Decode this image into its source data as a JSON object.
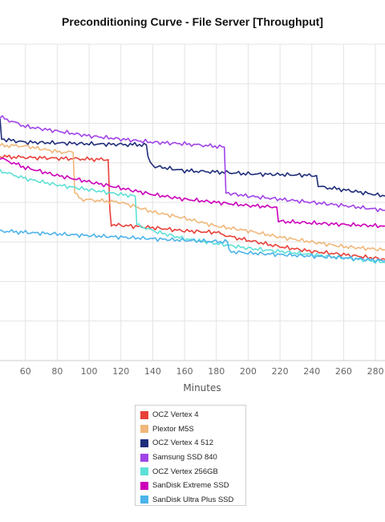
{
  "chart_data": {
    "type": "line",
    "title": "Preconditioning Curve - File Server [Throughput]",
    "xlabel": "Minutes",
    "ylabel": "",
    "x_ticks": [
      60,
      80,
      100,
      120,
      140,
      160,
      180,
      200,
      220,
      240,
      260,
      280
    ],
    "xlim": [
      44,
      286
    ],
    "ylim": [
      0,
      1
    ],
    "grid": true,
    "legend_position": "bottom",
    "series": [
      {
        "name": "OCZ Vertex 4",
        "color": "#e8413a",
        "points": [
          [
            44,
            0.645
          ],
          [
            60,
            0.642
          ],
          [
            90,
            0.638
          ],
          [
            112,
            0.635
          ],
          [
            113,
            0.48
          ],
          [
            114,
            0.43
          ],
          [
            140,
            0.42
          ],
          [
            160,
            0.41
          ],
          [
            180,
            0.405
          ],
          [
            190,
            0.39
          ],
          [
            220,
            0.36
          ],
          [
            240,
            0.345
          ],
          [
            260,
            0.335
          ],
          [
            286,
            0.32
          ]
        ]
      },
      {
        "name": "Plextor M5S",
        "color": "#f0b77a",
        "points": [
          [
            44,
            0.68
          ],
          [
            60,
            0.678
          ],
          [
            80,
            0.66
          ],
          [
            90,
            0.658
          ],
          [
            91,
            0.53
          ],
          [
            95,
            0.51
          ],
          [
            120,
            0.5
          ],
          [
            140,
            0.47
          ],
          [
            160,
            0.45
          ],
          [
            180,
            0.425
          ],
          [
            200,
            0.41
          ],
          [
            220,
            0.39
          ],
          [
            240,
            0.375
          ],
          [
            260,
            0.36
          ],
          [
            286,
            0.35
          ]
        ]
      },
      {
        "name": "OCZ Vertex 4 512",
        "color": "#1f2d7a",
        "points": [
          [
            44,
            0.765
          ],
          [
            45,
            0.7
          ],
          [
            60,
            0.69
          ],
          [
            80,
            0.688
          ],
          [
            100,
            0.685
          ],
          [
            120,
            0.683
          ],
          [
            136,
            0.682
          ],
          [
            137,
            0.64
          ],
          [
            140,
            0.615
          ],
          [
            160,
            0.6
          ],
          [
            185,
            0.595
          ],
          [
            200,
            0.59
          ],
          [
            220,
            0.588
          ],
          [
            243,
            0.585
          ],
          [
            244,
            0.55
          ],
          [
            260,
            0.54
          ],
          [
            286,
            0.52
          ]
        ]
      },
      {
        "name": "Samsung SSD 840",
        "color": "#a044e8",
        "points": [
          [
            44,
            0.77
          ],
          [
            60,
            0.74
          ],
          [
            80,
            0.725
          ],
          [
            100,
            0.71
          ],
          [
            120,
            0.7
          ],
          [
            140,
            0.69
          ],
          [
            160,
            0.685
          ],
          [
            185,
            0.675
          ],
          [
            186,
            0.53
          ],
          [
            200,
            0.52
          ],
          [
            220,
            0.51
          ],
          [
            240,
            0.5
          ],
          [
            260,
            0.49
          ],
          [
            286,
            0.475
          ]
        ]
      },
      {
        "name": "OCZ Vertex 256GB",
        "color": "#5ee0d6",
        "points": [
          [
            44,
            0.6
          ],
          [
            60,
            0.575
          ],
          [
            80,
            0.555
          ],
          [
            100,
            0.54
          ],
          [
            120,
            0.525
          ],
          [
            129,
            0.52
          ],
          [
            130,
            0.43
          ],
          [
            140,
            0.41
          ],
          [
            160,
            0.385
          ],
          [
            180,
            0.37
          ],
          [
            200,
            0.355
          ],
          [
            220,
            0.345
          ],
          [
            240,
            0.335
          ],
          [
            260,
            0.325
          ],
          [
            286,
            0.31
          ]
        ]
      },
      {
        "name": "SanDisk Extreme SSD",
        "color": "#cc00bb",
        "points": [
          [
            44,
            0.64
          ],
          [
            60,
            0.61
          ],
          [
            80,
            0.585
          ],
          [
            100,
            0.565
          ],
          [
            120,
            0.545
          ],
          [
            140,
            0.525
          ],
          [
            160,
            0.51
          ],
          [
            180,
            0.5
          ],
          [
            200,
            0.49
          ],
          [
            218,
            0.485
          ],
          [
            219,
            0.44
          ],
          [
            240,
            0.435
          ],
          [
            260,
            0.43
          ],
          [
            286,
            0.425
          ]
        ]
      },
      {
        "name": "SanDisk Ultra Plus SSD",
        "color": "#4db3ea",
        "points": [
          [
            44,
            0.41
          ],
          [
            60,
            0.405
          ],
          [
            80,
            0.4
          ],
          [
            100,
            0.395
          ],
          [
            120,
            0.39
          ],
          [
            140,
            0.385
          ],
          [
            160,
            0.38
          ],
          [
            187,
            0.375
          ],
          [
            188,
            0.345
          ],
          [
            200,
            0.34
          ],
          [
            220,
            0.335
          ],
          [
            240,
            0.33
          ],
          [
            260,
            0.325
          ],
          [
            286,
            0.315
          ]
        ]
      }
    ]
  }
}
